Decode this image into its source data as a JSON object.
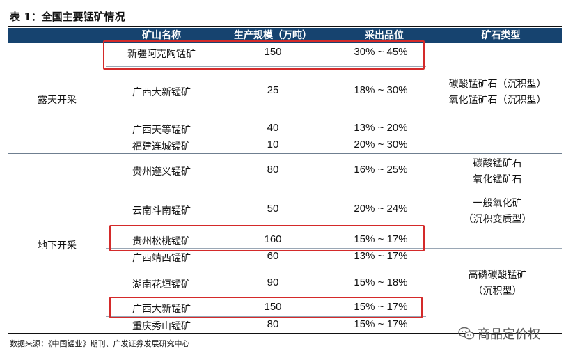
{
  "title": "表 1：全国主要锰矿情况",
  "headers": [
    "矿山名称",
    "生产规模（万吨）",
    "采出品位",
    "矿石类型"
  ],
  "groups": [
    "露天开采",
    "地下开采"
  ],
  "rows": [
    {
      "name": "新疆阿克陶锰矿",
      "scale": "150",
      "grade": "30% ~ 45%"
    },
    {
      "name": "广西大新锰矿",
      "scale": "25",
      "grade": "18% ~ 30%"
    },
    {
      "name": "广西天等锰矿",
      "scale": "40",
      "grade": "13% ~ 20%"
    },
    {
      "name": "福建连城锰矿",
      "scale": "10",
      "grade": "20% ~ 30%"
    },
    {
      "name": "贵州遵义锰矿",
      "scale": "80",
      "grade": "16% ~ 25%"
    },
    {
      "name": "云南斗南锰矿",
      "scale": "50",
      "grade": "20% ~ 24%"
    },
    {
      "name": "贵州松桃锰矿",
      "scale": "160",
      "grade": "15% ~ 17%"
    },
    {
      "name": "广西靖西锰矿",
      "scale": "60",
      "grade": "13% ~ 17%"
    },
    {
      "name": "湖南花垣锰矿",
      "scale": "90",
      "grade": "15% ~ 18%"
    },
    {
      "name": "广西大新锰矿",
      "scale": "150",
      "grade": "15% ~ 17%"
    },
    {
      "name": "重庆秀山锰矿",
      "scale": "80",
      "grade": "15% ~ 17%"
    }
  ],
  "ore_types": [
    [
      "碳酸锰矿石（沉积型）",
      "氧化锰矿石（沉积型）"
    ],
    [
      "碳酸锰矿石",
      "氧化锰矿石"
    ],
    [
      "一般氧化矿",
      "（沉积变质型）"
    ],
    [
      "高磷碳酸锰矿",
      "（沉积型）"
    ]
  ],
  "footer": "数据来源：《中国锰业》期刊、广发证券发展研究中心",
  "watermark": "商品定价权",
  "colors": {
    "header_bg": "#16436f",
    "highlight": "#d42a2a"
  }
}
